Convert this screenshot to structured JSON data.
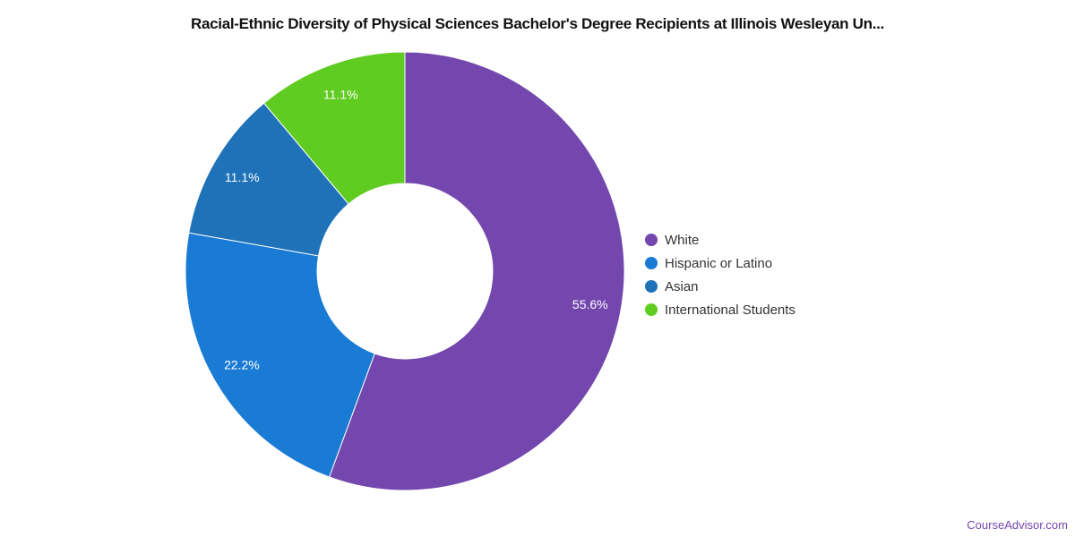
{
  "chart_data": {
    "type": "pie",
    "donut": true,
    "title": "Racial-Ethnic Diversity of Physical Sciences Bachelor's Degree Recipients at Illinois Wesleyan Un...",
    "legend_position": "right",
    "slices": [
      {
        "name": "White",
        "value": 55.6,
        "label": "55.6%",
        "color": "#7447ae"
      },
      {
        "name": "Hispanic or Latino",
        "value": 22.2,
        "label": "22.2%",
        "color": "#1a7bd5"
      },
      {
        "name": "Asian",
        "value": 11.1,
        "label": "11.1%",
        "color": "#1f72b8"
      },
      {
        "name": "International Students",
        "value": 11.1,
        "label": "11.1%",
        "color": "#60cc22"
      }
    ]
  },
  "watermark": "CourseAdvisor.com"
}
